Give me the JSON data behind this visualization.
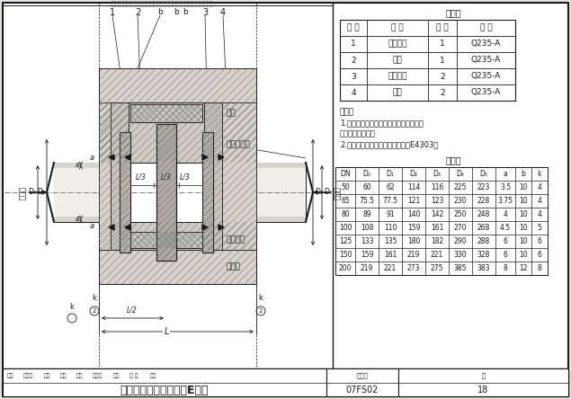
{
  "title": "防护密闭套管安装图（E型）",
  "figure_num": "07FS02",
  "page": "18",
  "bg_color": "#e8e5e0",
  "white": "#ffffff",
  "black": "#1a1a1a",
  "gray": "#777777",
  "hatch_gray": "#999999",
  "material_table": {
    "title": "材料表",
    "headers": [
      "编 号",
      "名 称",
      "数 量",
      "材 料"
    ],
    "rows": [
      [
        "1",
        "钢制套管",
        "1",
        "Q235-A"
      ],
      [
        "2",
        "翼环",
        "1",
        "Q235-A"
      ],
      [
        "3",
        "固定法兰",
        "2",
        "Q235-A"
      ],
      [
        "4",
        "挡板",
        "2",
        "Q235-A"
      ]
    ]
  },
  "notes": [
    "说明：",
    "1.管道和填充材料施工完后，再施行挡板",
    "和固定法兰焊接。",
    "2.焊接采用手工电弧焊，焊条型号E4303。"
  ],
  "dim_table": {
    "title": "尺寸表",
    "headers": [
      "DN",
      "D₀",
      "D₁",
      "D₂",
      "D₃",
      "D₄",
      "D₅",
      "a",
      "b",
      "k"
    ],
    "rows": [
      [
        "50",
        "60",
        "62",
        "114",
        "116",
        "225",
        "223",
        "3.5",
        "10",
        "4"
      ],
      [
        "65",
        "75.5",
        "77.5",
        "121",
        "123",
        "230",
        "228",
        "3.75",
        "10",
        "4"
      ],
      [
        "80",
        "89",
        "91",
        "140",
        "142",
        "250",
        "248",
        "4",
        "10",
        "4"
      ],
      [
        "100",
        "108",
        "110",
        "159",
        "161",
        "270",
        "268",
        "4.5",
        "10",
        "5"
      ],
      [
        "125",
        "133",
        "135",
        "180",
        "182",
        "290",
        "288",
        "6",
        "10",
        "6"
      ],
      [
        "150",
        "159",
        "161",
        "219",
        "221",
        "330",
        "328",
        "6",
        "10",
        "6"
      ],
      [
        "200",
        "219",
        "221",
        "273",
        "275",
        "385",
        "383",
        "8",
        "12",
        "8"
      ]
    ]
  },
  "bottom_labels": [
    "审核",
    "许为民",
    "审核",
    "沙城",
    "校对",
    "庄德胜",
    "设计",
    "任 杰",
    "伍玫"
  ]
}
